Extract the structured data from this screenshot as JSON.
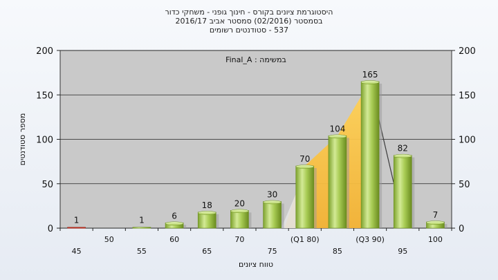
{
  "header": {
    "line1": "היסטוגרמת ציונים בקורס - חינוך גופני - משחקי כדור",
    "line2": "בסמסטר  (02/2016)  סמסטר אביב 2016/17",
    "line3": "537 - סטודנטים רשומים"
  },
  "chart_data": {
    "type": "bar",
    "subtitle": "במשימה : Final_A",
    "xlabel": "טווח ציונים",
    "ylabel": "מספר סטודנטים",
    "ylim": [
      0,
      200
    ],
    "yticks": [
      0,
      50,
      100,
      150,
      200
    ],
    "grid": true,
    "categories": [
      "45",
      "50",
      "55",
      "60",
      "65",
      "70",
      "75",
      "(Q1 80)",
      "85",
      "(Q3 90)",
      "95",
      "100"
    ],
    "values": [
      1,
      0,
      1,
      6,
      18,
      20,
      30,
      70,
      104,
      165,
      82,
      7
    ],
    "data_labels": [
      "1",
      "",
      "1",
      "6",
      "18",
      "20",
      "30",
      "70",
      "104",
      "165",
      "82",
      "7"
    ],
    "quartile_band": [
      "(Q1 80)",
      "(Q3 90)"
    ],
    "colors": {
      "plot_bg": "#c9c9c9",
      "bar": "#9cc34a",
      "bar_light": "#d6ec9c",
      "bar_dark": "#6f8f22",
      "band": "#f6bf3d",
      "first_bar": "#d03a2a"
    }
  }
}
